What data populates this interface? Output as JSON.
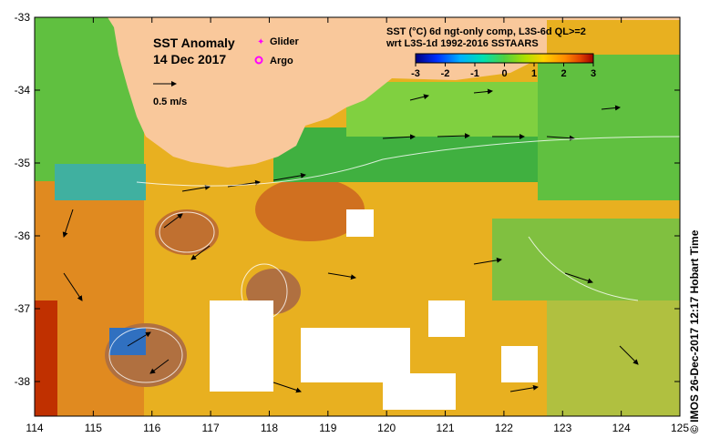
{
  "map": {
    "title_line1": "SST Anomaly",
    "title_line2": "14 Dec 2017",
    "scale_arrow_label": "0.5 m/s",
    "legend_glider": "Glider",
    "legend_argo": "Argo",
    "colorbar_title_line1": "SST (°C) 6d ngt-only comp, L3S-6d QL>=2",
    "colorbar_title_line2": "wrt L3S-1d 1992-2016 SSTAARS",
    "colorbar_ticks": [
      "-3",
      "-2",
      "-1",
      "0",
      "1",
      "2",
      "3"
    ],
    "x_ticks": [
      "114",
      "115",
      "116",
      "117",
      "118",
      "119",
      "120",
      "121",
      "122",
      "123",
      "124",
      "125"
    ],
    "y_ticks": [
      "-33",
      "-34",
      "-35",
      "-36",
      "-37",
      "-38"
    ],
    "credit": "© IMOS 26-Dec-2017 12:17 Hobart Time",
    "colors": {
      "land": "#f9c89b",
      "glider": "#ff00ff",
      "argo": "#ff00ff",
      "anomaly_scale": [
        "#000080",
        "#0040ff",
        "#00c0ff",
        "#00e0a0",
        "#40d040",
        "#a0e000",
        "#ffd000",
        "#ff9000",
        "#e05000",
        "#a00000"
      ]
    }
  }
}
